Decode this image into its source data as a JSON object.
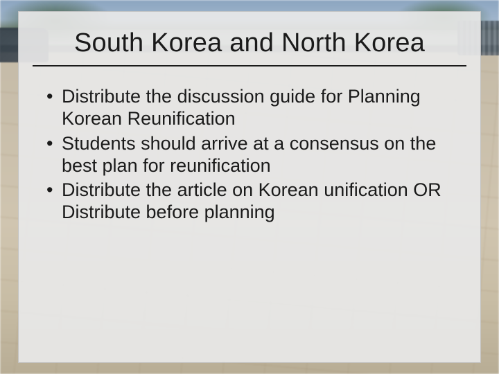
{
  "slide": {
    "title": "South Korea and North Korea",
    "bullets": [
      "Distribute the discussion guide for Planning Korean Reunification",
      "Students should arrive at a consensus on the best plan for reunification",
      "Distribute the article on Korean unification OR Distribute before planning"
    ],
    "colors": {
      "slide_bg": "#e8e8e8",
      "text": "#1a1a1a",
      "rule": "#1a1a1a"
    },
    "typography": {
      "title_fontsize_pt": 29,
      "body_fontsize_pt": 20,
      "font_family": "Arial"
    }
  }
}
